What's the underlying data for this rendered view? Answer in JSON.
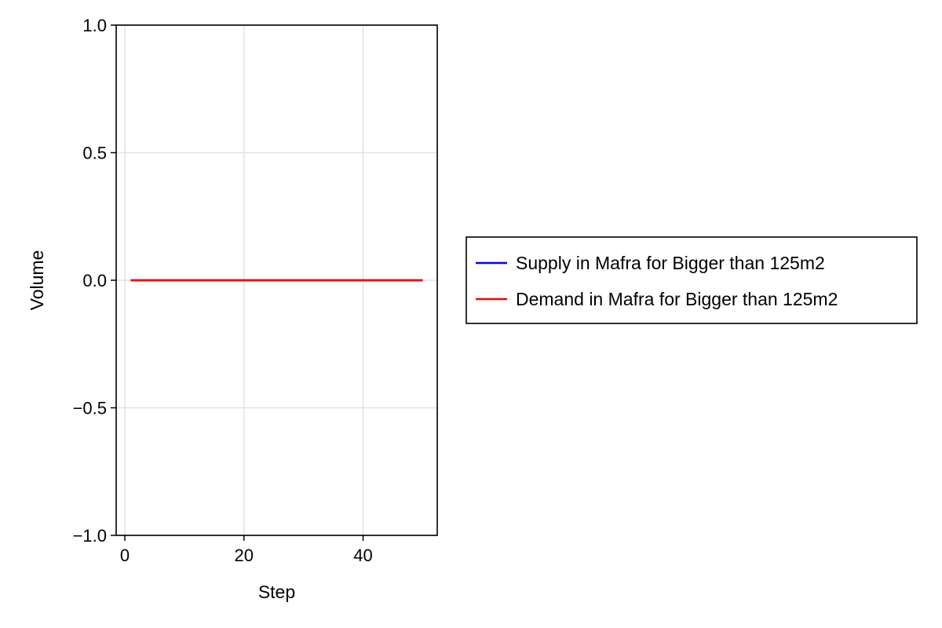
{
  "chart_data": {
    "type": "line",
    "title": "",
    "xlabel": "Step",
    "ylabel": "Volume",
    "xlim": [
      -1.45,
      52.45
    ],
    "ylim": [
      -1.0,
      1.0
    ],
    "x_ticks": [
      0,
      20,
      40
    ],
    "y_ticks": [
      -1.0,
      -0.5,
      0.0,
      0.5,
      1.0
    ],
    "x_tick_labels": [
      "0",
      "20",
      "40"
    ],
    "y_tick_labels": [
      "−1.0",
      "−0.5",
      "0.0",
      "0.5",
      "1.0"
    ],
    "grid": true,
    "legend_position": "right",
    "x": [
      1,
      50
    ],
    "series": [
      {
        "name": "Supply in Mafra for Bigger than 125m2",
        "color": "#0000ff",
        "values": [
          0,
          0
        ]
      },
      {
        "name": "Demand in Mafra for Bigger than 125m2",
        "color": "#ff0000",
        "values": [
          0,
          0
        ]
      }
    ]
  }
}
